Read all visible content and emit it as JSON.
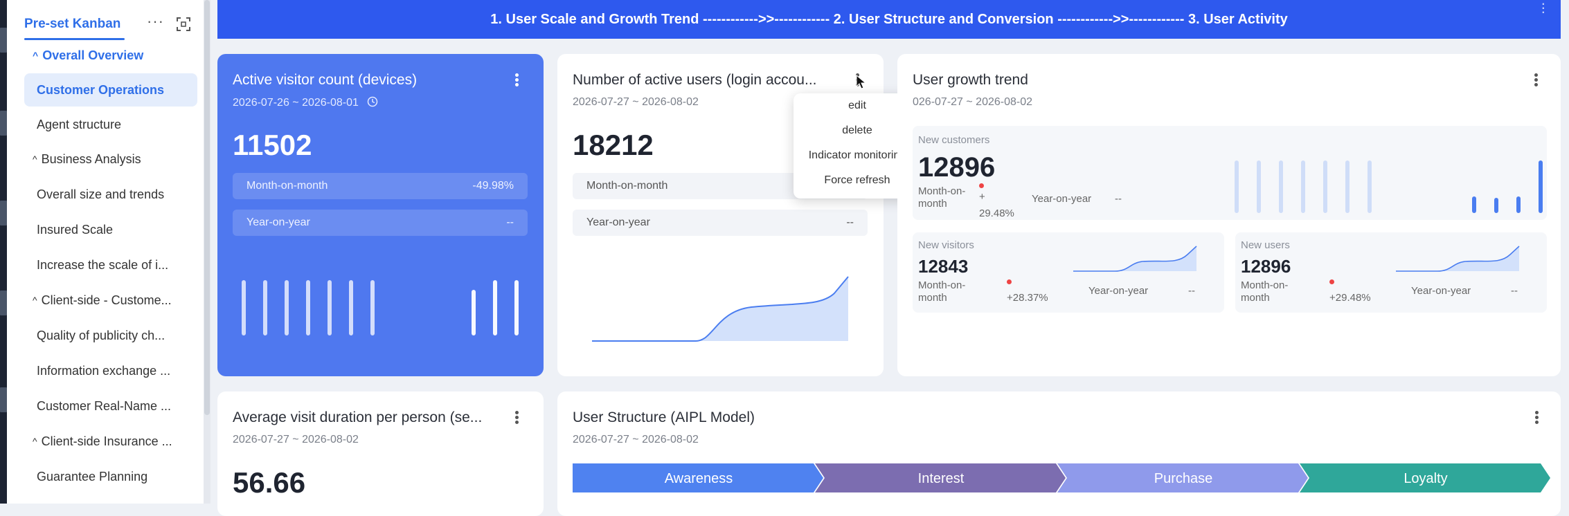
{
  "sidebar": {
    "tab": "Pre-set Kanban",
    "items": [
      {
        "label": "Overall Overview",
        "type": "group",
        "active": true
      },
      {
        "label": "Customer Operations",
        "type": "item",
        "selected": true
      },
      {
        "label": "Agent structure",
        "type": "item"
      },
      {
        "label": "Business Analysis",
        "type": "group"
      },
      {
        "label": "Overall size and trends",
        "type": "item"
      },
      {
        "label": "Insured Scale",
        "type": "item"
      },
      {
        "label": "Increase the scale of i...",
        "type": "item"
      },
      {
        "label": "Client-side - Custome...",
        "type": "group"
      },
      {
        "label": "Quality of publicity ch...",
        "type": "item"
      },
      {
        "label": "Information exchange ...",
        "type": "item"
      },
      {
        "label": "Customer Real-Name ...",
        "type": "item"
      },
      {
        "label": "Client-side Insurance ...",
        "type": "group"
      },
      {
        "label": "Guarantee Planning",
        "type": "item"
      }
    ]
  },
  "banner": {
    "text": "1. User Scale and Growth Trend ------------>>------------ 2. User Structure and Conversion ------------>>------------ 3. User Activity"
  },
  "card1": {
    "title": "Active visitor count (devices)",
    "date": "2026-07-26 ~ 2026-08-01",
    "value": "11502",
    "mom_label": "Month-on-month",
    "mom_value": "-49.98%",
    "yoy_label": "Year-on-year",
    "yoy_value": "--"
  },
  "card2": {
    "title": "Number of active users (login accou...",
    "date": "2026-07-27 ~ 2026-08-02",
    "value": "18212",
    "mom_label": "Month-on-month",
    "yoy_label": "Year-on-year",
    "yoy_value": "--"
  },
  "menu": {
    "items": [
      "edit",
      "delete",
      "Indicator monitoring",
      "Force refresh"
    ]
  },
  "card3": {
    "title": "User growth trend",
    "date": "026-07-27 ~ 2026-08-02",
    "new_customers": {
      "label": "New customers",
      "value": "12896",
      "mom_label": "Month-on-month",
      "mom_value_a": "+",
      "mom_value_b": "29.48%",
      "yoy_label": "Year-on-year",
      "yoy_value": "--"
    },
    "new_visitors": {
      "label": "New visitors",
      "value": "12843",
      "mom_label": "Month-on-month",
      "mom_value": "+28.37%",
      "yoy_label": "Year-on-year",
      "yoy_value": "--"
    },
    "new_users": {
      "label": "New users",
      "value": "12896",
      "mom_label": "Month-on-month",
      "mom_value": "+29.48%",
      "yoy_label": "Year-on-year",
      "yoy_value": "--"
    }
  },
  "card4": {
    "title": "Average visit duration per person (se...",
    "date": "2026-07-27 ~ 2026-08-02",
    "value": "56.66"
  },
  "card5": {
    "title": "User Structure (AIPL Model)",
    "date": "2026-07-27 ~ 2026-08-02",
    "stages": [
      "Awareness",
      "Interest",
      "Purchase",
      "Loyalty"
    ],
    "stage_colors": [
      "#4f82f0",
      "#7c6db0",
      "#8f9aeb",
      "#2fa79a"
    ]
  }
}
